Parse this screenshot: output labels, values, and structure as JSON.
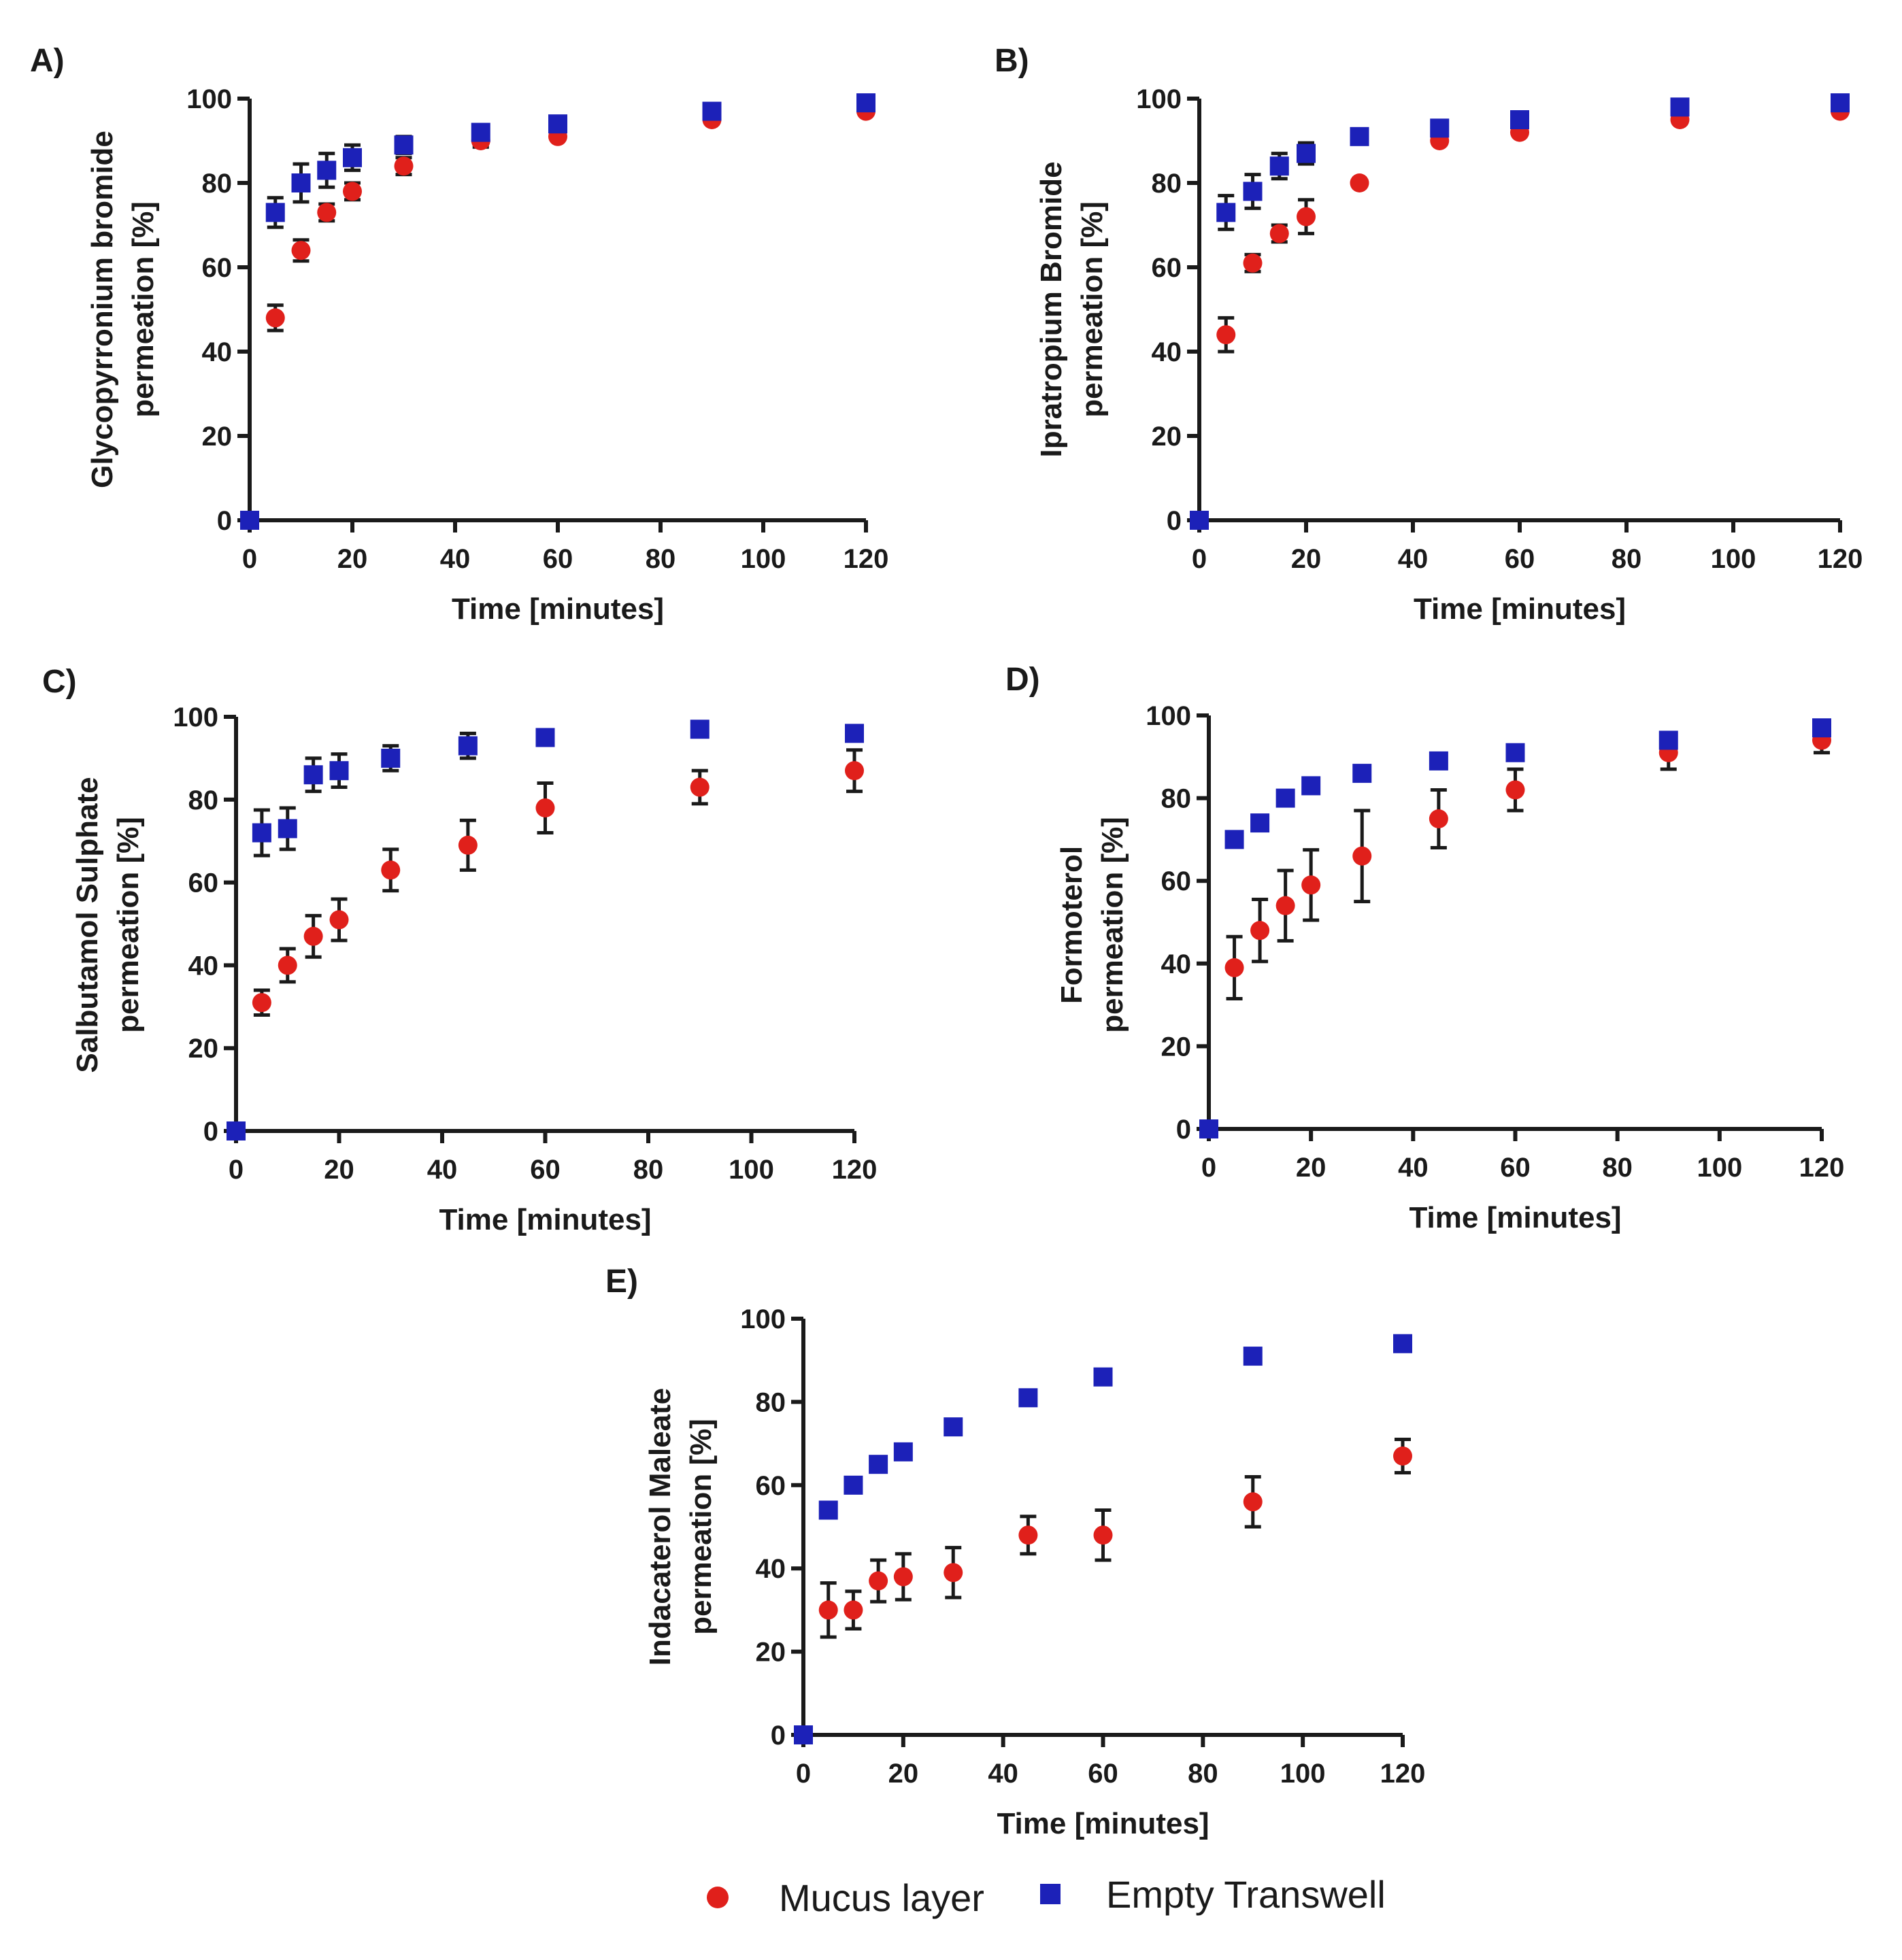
{
  "colors": {
    "mucus": "#e0201b",
    "empty": "#1c21b8",
    "axis": "#1a1a1a"
  },
  "legend": {
    "mucus_label": "Mucus layer",
    "empty_label": "Empty Transwell"
  },
  "chart_data": [
    {
      "panel": "A)",
      "type": "scatter",
      "xlabel": "Time [minutes]",
      "ylabel": [
        "Glycopyrronium bromide",
        "permeation [%]"
      ],
      "xlim": [
        0,
        120
      ],
      "ylim": [
        0,
        100
      ],
      "xticks": [
        "0",
        "20",
        "40",
        "60",
        "80",
        "100",
        "120"
      ],
      "yticks": [
        "0",
        "20",
        "40",
        "60",
        "80",
        "100"
      ],
      "x": [
        0,
        5,
        10,
        15,
        20,
        30,
        45,
        60,
        90,
        120
      ],
      "series": [
        {
          "name": "Mucus layer",
          "values": [
            0,
            48,
            64,
            73,
            78,
            84,
            90,
            91,
            95,
            97
          ],
          "errors": [
            0,
            3,
            2.5,
            2,
            2,
            2,
            1.5,
            1,
            1,
            1
          ]
        },
        {
          "name": "Empty Transwell",
          "values": [
            0,
            73,
            80,
            83,
            86,
            89,
            92,
            94,
            97,
            99
          ],
          "errors": [
            0,
            3.5,
            4.5,
            4,
            3,
            2,
            1.5,
            1,
            1,
            1
          ]
        }
      ]
    },
    {
      "panel": "B)",
      "type": "scatter",
      "xlabel": "Time [minutes]",
      "ylabel": [
        "Ipratropium Bromide",
        "permeation [%]"
      ],
      "xlim": [
        0,
        120
      ],
      "ylim": [
        0,
        100
      ],
      "xticks": [
        "0",
        "20",
        "40",
        "60",
        "80",
        "100",
        "120"
      ],
      "yticks": [
        "0",
        "20",
        "40",
        "60",
        "80",
        "100"
      ],
      "x": [
        0,
        5,
        10,
        15,
        20,
        30,
        45,
        60,
        90,
        120
      ],
      "series": [
        {
          "name": "Mucus layer",
          "values": [
            0,
            44,
            61,
            68,
            72,
            80,
            90,
            92,
            95,
            97
          ],
          "errors": [
            0,
            4,
            2,
            2,
            4,
            1,
            1,
            1,
            1,
            1
          ]
        },
        {
          "name": "Empty Transwell",
          "values": [
            0,
            73,
            78,
            84,
            87,
            91,
            93,
            95,
            98,
            99
          ],
          "errors": [
            0,
            4,
            4,
            3,
            2.5,
            1.5,
            1,
            1,
            1,
            1
          ]
        }
      ]
    },
    {
      "panel": "C)",
      "type": "scatter",
      "xlabel": "Time [minutes]",
      "ylabel": [
        "Salbutamol Sulphate",
        "permeation [%]"
      ],
      "xlim": [
        0,
        120
      ],
      "ylim": [
        0,
        100
      ],
      "xticks": [
        "0",
        "20",
        "40",
        "60",
        "80",
        "100",
        "120"
      ],
      "yticks": [
        "0",
        "20",
        "40",
        "60",
        "80",
        "100"
      ],
      "x": [
        0,
        5,
        10,
        15,
        20,
        30,
        45,
        60,
        90,
        120
      ],
      "series": [
        {
          "name": "Mucus layer",
          "values": [
            0,
            31,
            40,
            47,
            51,
            63,
            69,
            78,
            83,
            87
          ],
          "errors": [
            0,
            3,
            4,
            5,
            5,
            5,
            6,
            6,
            4,
            5
          ]
        },
        {
          "name": "Empty Transwell",
          "values": [
            0,
            72,
            73,
            86,
            87,
            90,
            93,
            95,
            97,
            96
          ],
          "errors": [
            0,
            5.5,
            5,
            4,
            4,
            3,
            3,
            1,
            1,
            1
          ]
        }
      ]
    },
    {
      "panel": "D)",
      "type": "scatter",
      "xlabel": "Time [minutes]",
      "ylabel": [
        "Formoterol",
        "permeation [%]"
      ],
      "xlim": [
        0,
        120
      ],
      "ylim": [
        0,
        100
      ],
      "xticks": [
        "0",
        "20",
        "40",
        "60",
        "80",
        "100",
        "120"
      ],
      "yticks": [
        "0",
        "20",
        "40",
        "60",
        "80",
        "100"
      ],
      "x": [
        0,
        5,
        10,
        15,
        20,
        30,
        45,
        60,
        90,
        120
      ],
      "series": [
        {
          "name": "Mucus layer",
          "values": [
            0,
            39,
            48,
            54,
            59,
            66,
            75,
            82,
            91,
            94
          ],
          "errors": [
            0,
            7.5,
            7.5,
            8.5,
            8.5,
            11,
            7,
            5,
            4,
            3
          ]
        },
        {
          "name": "Empty Transwell",
          "values": [
            0,
            70,
            74,
            80,
            83,
            86,
            89,
            91,
            94,
            97
          ],
          "errors": [
            0,
            1,
            1,
            1,
            1,
            1,
            1,
            1,
            1,
            1
          ]
        }
      ]
    },
    {
      "panel": "E)",
      "type": "scatter",
      "xlabel": "Time [minutes]",
      "ylabel": [
        "Indacaterol Maleate",
        "permeation [%]"
      ],
      "xlim": [
        0,
        120
      ],
      "ylim": [
        0,
        100
      ],
      "xticks": [
        "0",
        "20",
        "40",
        "60",
        "80",
        "100",
        "120"
      ],
      "yticks": [
        "0",
        "20",
        "40",
        "60",
        "80",
        "100"
      ],
      "x": [
        0,
        5,
        10,
        15,
        20,
        30,
        45,
        60,
        90,
        120
      ],
      "series": [
        {
          "name": "Mucus layer",
          "values": [
            0,
            30,
            30,
            37,
            38,
            39,
            48,
            48,
            56,
            67
          ],
          "errors": [
            0,
            6.5,
            4.5,
            5,
            5.5,
            6,
            4.5,
            6,
            6,
            4
          ]
        },
        {
          "name": "Empty Transwell",
          "values": [
            0,
            54,
            60,
            65,
            68,
            74,
            81,
            86,
            91,
            94
          ],
          "errors": [
            0,
            1,
            1,
            1,
            1,
            1,
            1,
            1,
            1,
            1
          ]
        }
      ]
    }
  ]
}
